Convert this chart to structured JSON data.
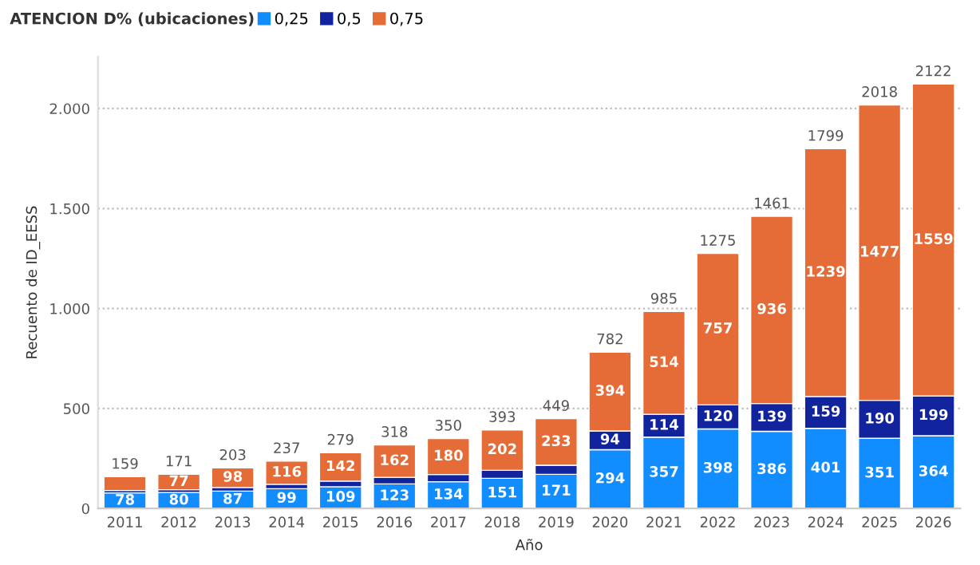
{
  "chart_data": {
    "type": "bar",
    "stacked": true,
    "legend_title": "ATENCION D% (ubicaciones)",
    "legend": "top left",
    "xlabel": "Año",
    "ylabel": "Recuento de ID_EESS",
    "categories": [
      "2011",
      "2012",
      "2013",
      "2014",
      "2015",
      "2016",
      "2017",
      "2018",
      "2019",
      "2020",
      "2021",
      "2022",
      "2023",
      "2024",
      "2025",
      "2026"
    ],
    "series": [
      {
        "name": "0,25",
        "color": "#118dff",
        "values": [
          78,
          80,
          87,
          99,
          109,
          123,
          134,
          151,
          171,
          294,
          357,
          398,
          386,
          401,
          351,
          364
        ],
        "value_labels": [
          "78",
          "80",
          "87",
          "99",
          "109",
          "123",
          "134",
          "151",
          "171",
          "294",
          "357",
          "398",
          "386",
          "401",
          "351",
          "364"
        ]
      },
      {
        "name": "0,5",
        "color": "#12239e",
        "values": [
          12,
          14,
          18,
          22,
          28,
          33,
          36,
          40,
          45,
          94,
          114,
          120,
          139,
          159,
          190,
          199
        ],
        "value_labels": [
          null,
          null,
          null,
          null,
          null,
          null,
          null,
          null,
          null,
          "94",
          "114",
          "120",
          "139",
          "159",
          "190",
          "199"
        ]
      },
      {
        "name": "0,75",
        "color": "#e66c37",
        "values": [
          69,
          77,
          98,
          116,
          142,
          162,
          180,
          202,
          233,
          394,
          514,
          757,
          936,
          1239,
          1477,
          1559
        ],
        "value_labels": [
          null,
          "77",
          "98",
          "116",
          "142",
          "162",
          "180",
          "202",
          "233",
          "394",
          "514",
          "757",
          "936",
          "1239",
          "1477",
          "1559"
        ]
      }
    ],
    "totals": [
      "159",
      "171",
      "203",
      "237",
      "279",
      "318",
      "350",
      "393",
      "449",
      "782",
      "985",
      "1275",
      "1461",
      "1799",
      "2018",
      "2122"
    ],
    "ylim": [
      0,
      2260
    ],
    "yticks": [
      0,
      {
        "value": 500,
        "label": "500"
      },
      {
        "value": 1000,
        "label": "1.000"
      },
      {
        "value": 1500,
        "label": "1.500"
      },
      {
        "value": 2000,
        "label": "2.000"
      }
    ],
    "grid": "y"
  }
}
